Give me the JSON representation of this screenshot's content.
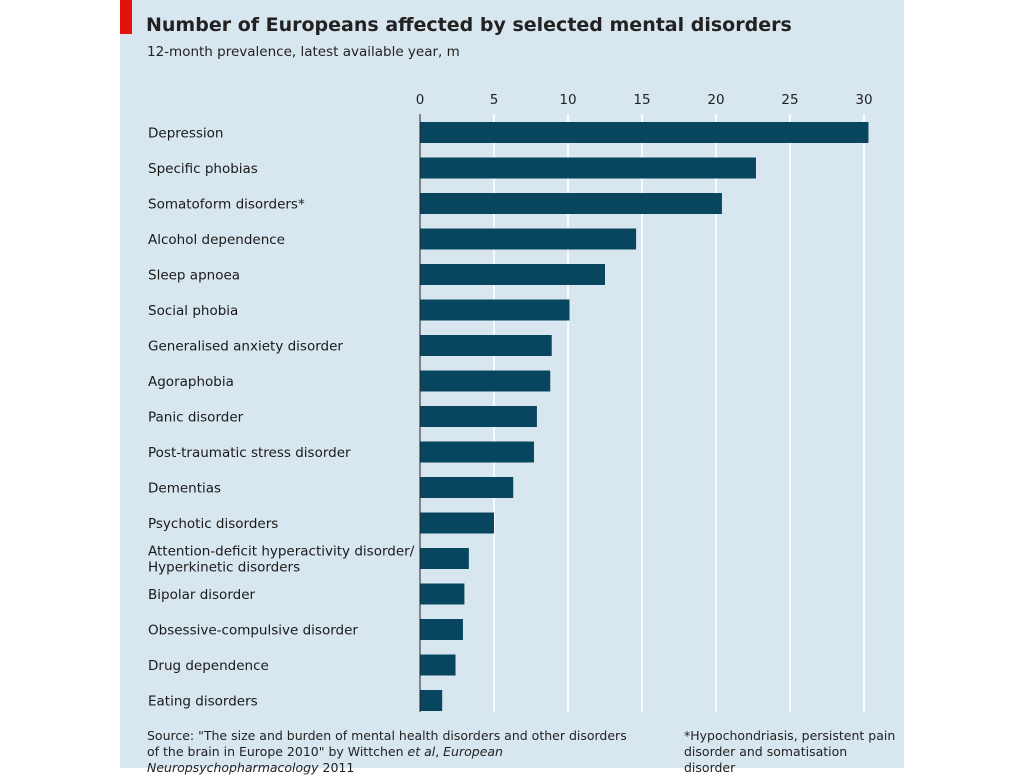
{
  "header": {
    "title": "Number of Europeans affected by selected mental disorders",
    "subtitle": "12-month prevalence, latest available year, m"
  },
  "colors": {
    "panel_background": "#d8e6ef",
    "bar": "#08465f",
    "accent": "#e3120b",
    "gridline": "#ffffff"
  },
  "chart_data": {
    "type": "bar",
    "orientation": "horizontal",
    "title": "Number of Europeans affected by selected mental disorders",
    "subtitle": "12-month prevalence, latest available year, m",
    "xlim": [
      0,
      30
    ],
    "xticks": [
      0,
      5,
      10,
      15,
      20,
      25,
      30
    ],
    "axis_position": "top",
    "grid": true,
    "categories": [
      [
        "Depression"
      ],
      [
        "Specific phobias"
      ],
      [
        "Somatoform disorders*"
      ],
      [
        "Alcohol dependence"
      ],
      [
        "Sleep apnoea"
      ],
      [
        "Social phobia"
      ],
      [
        "Generalised anxiety disorder"
      ],
      [
        "Agoraphobia"
      ],
      [
        "Panic disorder"
      ],
      [
        "Post-traumatic stress disorder"
      ],
      [
        "Dementias"
      ],
      [
        "Psychotic disorders"
      ],
      [
        "Attention-deficit hyperactivity disorder/",
        "Hyperkinetic disorders"
      ],
      [
        "Bipolar disorder"
      ],
      [
        "Obsessive-compulsive disorder"
      ],
      [
        "Drug dependence"
      ],
      [
        "Eating disorders"
      ]
    ],
    "values": [
      30.3,
      22.7,
      20.4,
      14.6,
      12.5,
      10.1,
      8.9,
      8.8,
      7.9,
      7.7,
      6.3,
      5.0,
      3.3,
      3.0,
      2.9,
      2.4,
      1.5
    ]
  },
  "footer": {
    "source_prefix": "Source: \"The size and burden of mental health disorders and other disorders",
    "source_line2_a": "of the brain in Europe 2010\" by Wittchen ",
    "source_line2_etal": "et al",
    "source_line2_b": ", ",
    "source_line2_journal": "European Neuropsychopharmacology",
    "source_line2_c": " 2011",
    "footnote_line1": "*Hypochondriasis, persistent pain",
    "footnote_line2": "disorder and somatisation disorder"
  }
}
